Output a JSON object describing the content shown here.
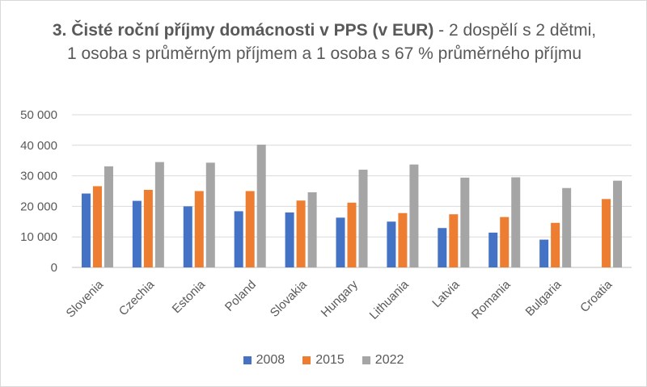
{
  "title": {
    "bold": "3. Čisté roční příjmy domácnosti v PPS (v EUR)",
    "rest": " - 2 dospělí s 2 dětmi, 1 osoba s průměrným příjmem a 1 osoba s 67 % průměrného příjmu"
  },
  "chart_data": {
    "type": "bar",
    "title": "3. Čisté roční příjmy domácnosti v PPS (v EUR) - 2 dospělí s 2 dětmi, 1 osoba s průměrným příjmem a 1 osoba s 67 % průměrného příjmu",
    "categories": [
      "Slovenia",
      "Czechia",
      "Estonia",
      "Poland",
      "Slovakia",
      "Hungary",
      "Lithuania",
      "Latvia",
      "Romania",
      "Bulgaria",
      "Croatia"
    ],
    "series": [
      {
        "name": "2008",
        "color": "#4472c4",
        "values": [
          24200,
          21800,
          20000,
          18400,
          18000,
          16300,
          15000,
          12900,
          11400,
          9100,
          null
        ]
      },
      {
        "name": "2015",
        "color": "#ed7d31",
        "values": [
          26600,
          25400,
          25000,
          25000,
          21900,
          21200,
          17800,
          17400,
          16500,
          14600,
          22400
        ]
      },
      {
        "name": "2022",
        "color": "#a5a5a5",
        "values": [
          33100,
          34500,
          34300,
          40200,
          24600,
          32000,
          33700,
          29400,
          29500,
          26000,
          28400
        ]
      }
    ],
    "ylim": [
      0,
      50000
    ],
    "yticks": [
      0,
      10000,
      20000,
      30000,
      40000,
      50000
    ],
    "ytick_labels": [
      "0",
      "10 000",
      "20 000",
      "30 000",
      "40 000",
      "50 000"
    ],
    "grid": "horizontal",
    "legend_position": "bottom"
  }
}
